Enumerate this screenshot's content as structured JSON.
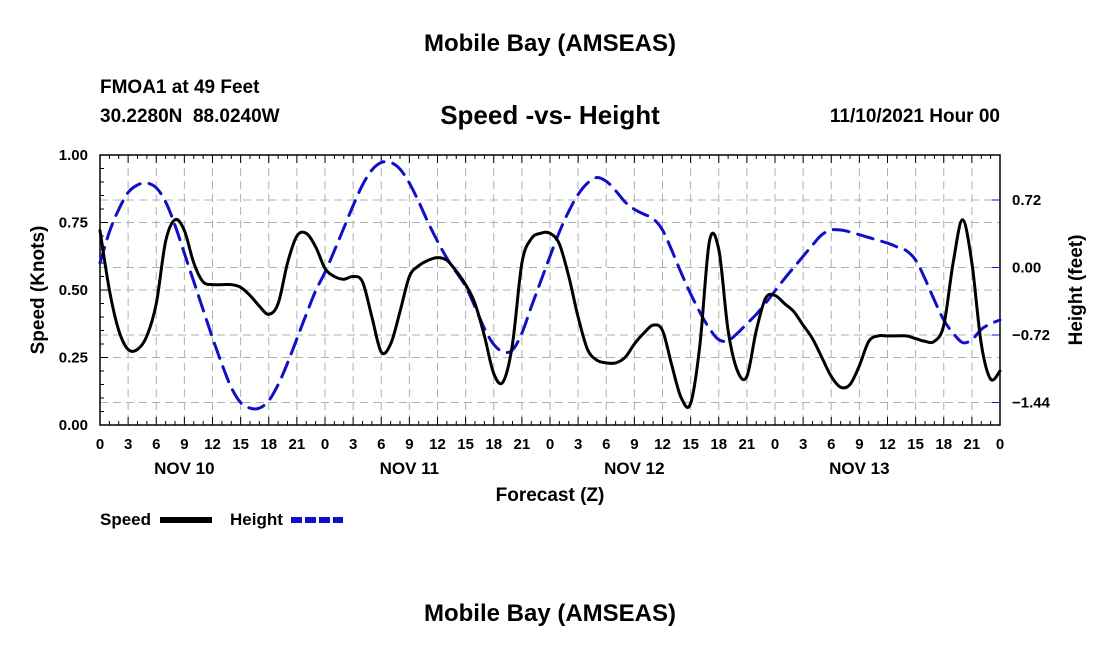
{
  "header": {
    "title": "Mobile Bay (AMSEAS)",
    "station": "FMOA1 at 49 Feet",
    "coords": "30.2280N  88.0240W",
    "chart_title": "Speed -vs- Height",
    "date": "11/10/2021 Hour 00"
  },
  "footer": {
    "title": "Mobile Bay (AMSEAS)"
  },
  "chart_data": {
    "type": "line",
    "title": "Speed -vs- Height",
    "xlabel": "Forecast (Z)",
    "ylabel": "Speed (Knots)",
    "y2label": "Height (feet)",
    "xlim": [
      0,
      96
    ],
    "ylim": [
      0,
      1
    ],
    "y2lim": [
      -1.68,
      1.2
    ],
    "xticks": [
      0,
      3,
      6,
      9,
      12,
      15,
      18,
      21,
      24,
      27,
      30,
      33,
      36,
      39,
      42,
      45,
      48,
      51,
      54,
      57,
      60,
      63,
      66,
      69,
      72,
      75,
      78,
      81,
      84,
      87,
      90,
      93,
      96
    ],
    "xtick_labels": [
      "0",
      "3",
      "6",
      "9",
      "12",
      "15",
      "18",
      "21",
      "0",
      "3",
      "6",
      "9",
      "12",
      "15",
      "18",
      "21",
      "0",
      "3",
      "6",
      "9",
      "12",
      "15",
      "18",
      "21",
      "0",
      "3",
      "6",
      "9",
      "12",
      "15",
      "18",
      "21",
      "0"
    ],
    "yticks": [
      0.0,
      0.25,
      0.5,
      0.75,
      1.0
    ],
    "ytick_labels": [
      "0.00",
      "0.25",
      "0.50",
      "0.75",
      "1.00"
    ],
    "y2ticks": [
      0.72,
      0.0,
      -0.72,
      -1.44
    ],
    "y2tick_labels": [
      "0.72",
      "0.00",
      "−0.72",
      "−1.44"
    ],
    "day_labels": [
      {
        "x": 9,
        "label": "NOV 10"
      },
      {
        "x": 33,
        "label": "NOV 11"
      },
      {
        "x": 57,
        "label": "NOV 12"
      },
      {
        "x": 81,
        "label": "NOV 13"
      }
    ],
    "grid": true,
    "legend_position": "bottom-left",
    "series": [
      {
        "name": "Speed",
        "axis": "left",
        "color": "#000000",
        "dash": "solid",
        "x": [
          0,
          1,
          2,
          3,
          4,
          5,
          6,
          7,
          8,
          9,
          10,
          11,
          12,
          13,
          14,
          15,
          16,
          17,
          18,
          19,
          20,
          21,
          22,
          23,
          24,
          25,
          26,
          27,
          28,
          29,
          30,
          31,
          32,
          33,
          34,
          35,
          36,
          37,
          38,
          39,
          40,
          41,
          42,
          43,
          44,
          45,
          46,
          47,
          48,
          49,
          50,
          51,
          52,
          53,
          54,
          55,
          56,
          57,
          58,
          59,
          60,
          61,
          62,
          63,
          64,
          65,
          66,
          67,
          68,
          69,
          70,
          71,
          72,
          73,
          74,
          75,
          76,
          77,
          78,
          79,
          80,
          81,
          82,
          83,
          84,
          85,
          86,
          87,
          88,
          89,
          90,
          91,
          92,
          93,
          94,
          95,
          96
        ],
        "values": [
          0.72,
          0.5,
          0.35,
          0.28,
          0.28,
          0.33,
          0.45,
          0.68,
          0.76,
          0.72,
          0.6,
          0.53,
          0.52,
          0.52,
          0.52,
          0.51,
          0.48,
          0.44,
          0.41,
          0.45,
          0.6,
          0.7,
          0.71,
          0.66,
          0.58,
          0.55,
          0.54,
          0.55,
          0.53,
          0.4,
          0.27,
          0.3,
          0.42,
          0.55,
          0.59,
          0.61,
          0.62,
          0.61,
          0.57,
          0.52,
          0.45,
          0.33,
          0.19,
          0.16,
          0.3,
          0.6,
          0.69,
          0.71,
          0.71,
          0.67,
          0.55,
          0.4,
          0.28,
          0.24,
          0.23,
          0.23,
          0.25,
          0.3,
          0.34,
          0.37,
          0.35,
          0.22,
          0.1,
          0.08,
          0.3,
          0.68,
          0.65,
          0.35,
          0.2,
          0.18,
          0.35,
          0.47,
          0.48,
          0.45,
          0.42,
          0.37,
          0.32,
          0.25,
          0.18,
          0.14,
          0.15,
          0.22,
          0.31,
          0.33,
          0.33,
          0.33,
          0.33,
          0.32,
          0.31,
          0.31,
          0.37,
          0.6,
          0.76,
          0.6,
          0.3,
          0.17,
          0.2
        ]
      },
      {
        "name": "Height",
        "axis": "right",
        "color": "#1010c8",
        "dash": "dashed",
        "x": [
          0,
          1,
          2,
          3,
          4,
          5,
          6,
          7,
          8,
          9,
          10,
          11,
          12,
          13,
          14,
          15,
          16,
          17,
          18,
          19,
          20,
          21,
          22,
          23,
          24,
          25,
          26,
          27,
          28,
          29,
          30,
          31,
          32,
          33,
          34,
          35,
          36,
          37,
          38,
          39,
          40,
          41,
          42,
          43,
          44,
          45,
          46,
          47,
          48,
          49,
          50,
          51,
          52,
          53,
          54,
          55,
          56,
          57,
          58,
          59,
          60,
          61,
          62,
          63,
          64,
          65,
          66,
          67,
          68,
          69,
          70,
          71,
          72,
          73,
          74,
          75,
          76,
          77,
          78,
          79,
          80,
          81,
          82,
          83,
          84,
          85,
          86,
          87,
          88,
          89,
          90,
          91,
          92,
          93,
          94,
          95,
          96
        ],
        "values": [
          0.05,
          0.38,
          0.62,
          0.8,
          0.88,
          0.9,
          0.85,
          0.7,
          0.45,
          0.15,
          -0.15,
          -0.45,
          -0.75,
          -1.03,
          -1.28,
          -1.44,
          -1.5,
          -1.5,
          -1.42,
          -1.25,
          -1.02,
          -0.76,
          -0.5,
          -0.25,
          -0.05,
          0.18,
          0.42,
          0.66,
          0.88,
          1.04,
          1.12,
          1.12,
          1.05,
          0.9,
          0.7,
          0.48,
          0.28,
          0.1,
          -0.05,
          -0.2,
          -0.42,
          -0.65,
          -0.82,
          -0.9,
          -0.88,
          -0.7,
          -0.42,
          -0.15,
          0.12,
          0.38,
          0.6,
          0.78,
          0.9,
          0.96,
          0.92,
          0.82,
          0.7,
          0.62,
          0.57,
          0.52,
          0.4,
          0.18,
          -0.06,
          -0.28,
          -0.48,
          -0.65,
          -0.77,
          -0.78,
          -0.7,
          -0.6,
          -0.5,
          -0.38,
          -0.25,
          -0.12,
          0.0,
          0.12,
          0.24,
          0.35,
          0.4,
          0.4,
          0.38,
          0.35,
          0.32,
          0.29,
          0.26,
          0.22,
          0.18,
          0.08,
          -0.12,
          -0.35,
          -0.56,
          -0.7,
          -0.8,
          -0.77,
          -0.66,
          -0.6,
          -0.56
        ]
      }
    ]
  }
}
